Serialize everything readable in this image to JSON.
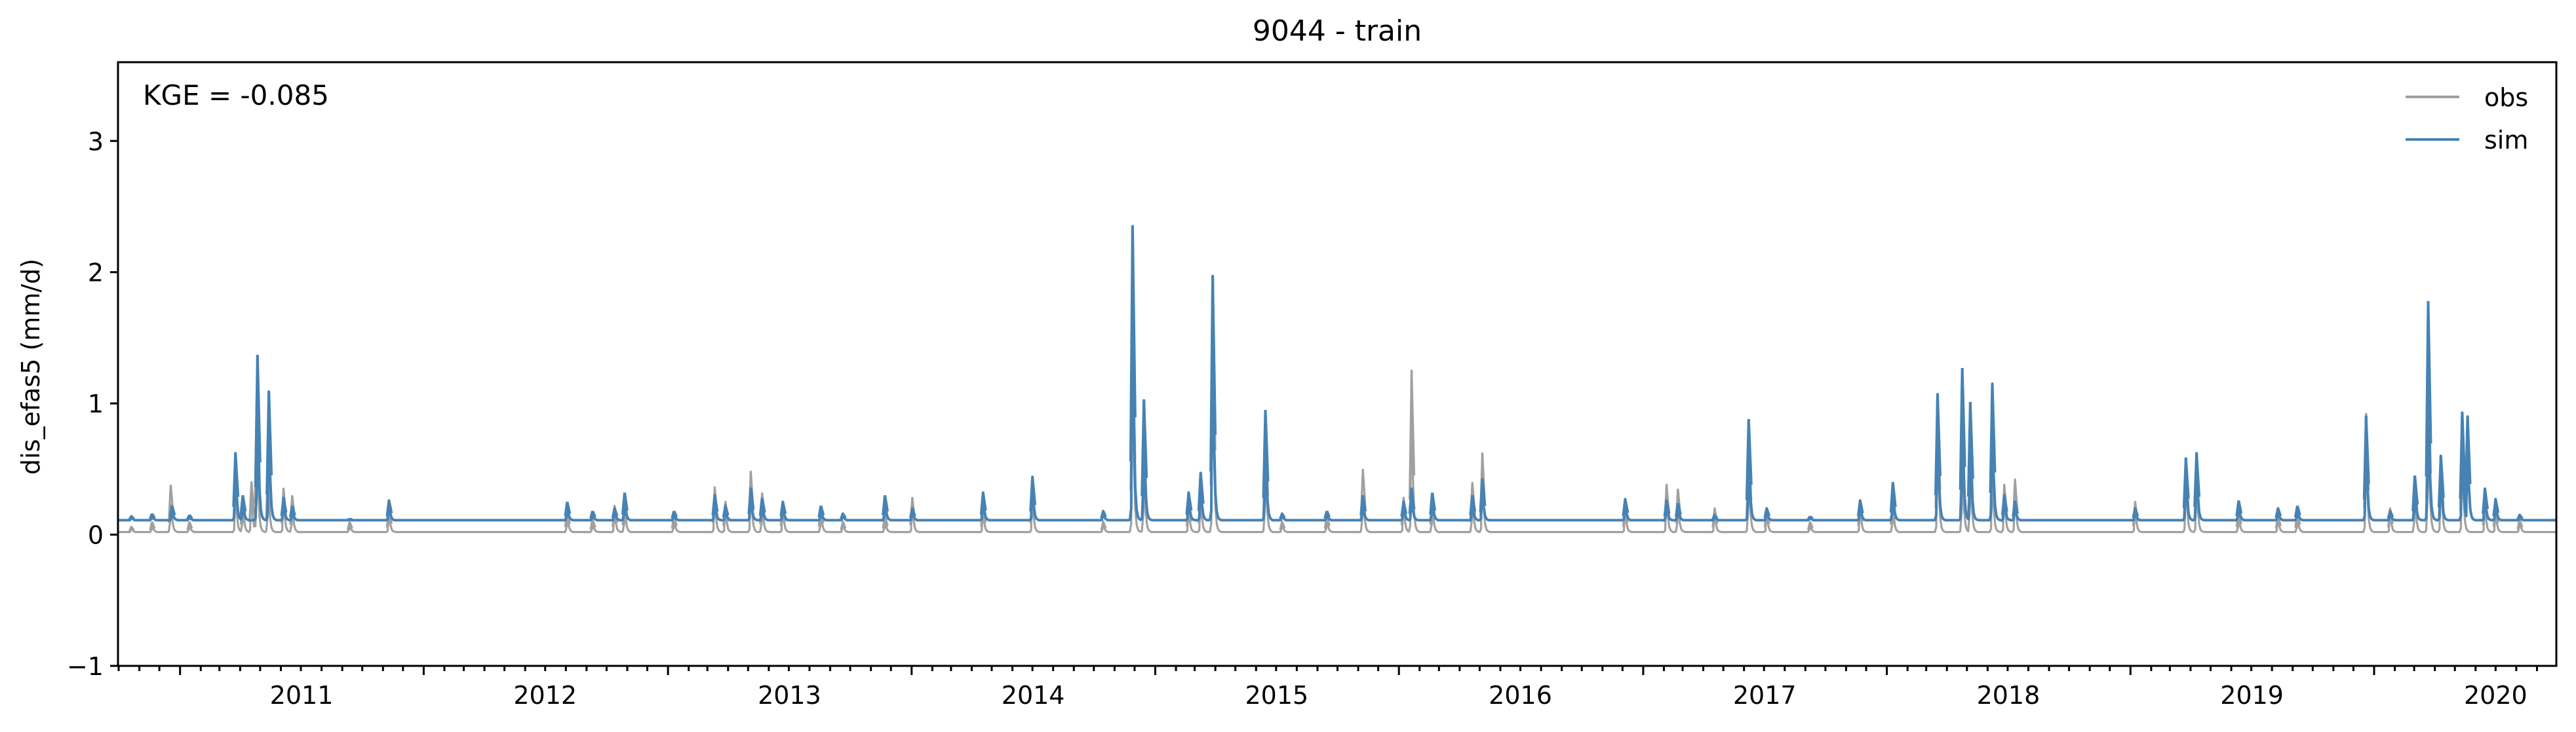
{
  "chart_data": {
    "type": "line",
    "title": "9044 - train",
    "xlabel": "",
    "ylabel": "dis_efas5 (mm/d)",
    "annotation": "KGE = -0.085",
    "xlim": [
      "2010-09-30",
      "2020-09-30"
    ],
    "ylim": [
      -1,
      3.6
    ],
    "yticks": [
      -1,
      0,
      1,
      2,
      3
    ],
    "ytick_labels": [
      "−1",
      "0",
      "1",
      "2",
      "3"
    ],
    "xticks": [
      "2011-01-01",
      "2012-01-01",
      "2013-01-01",
      "2014-01-01",
      "2015-01-01",
      "2016-01-01",
      "2017-01-01",
      "2018-01-01",
      "2019-01-01",
      "2020-01-01"
    ],
    "xtick_labels": [
      "2011",
      "2012",
      "2013",
      "2014",
      "2015",
      "2016",
      "2017",
      "2018",
      "2019",
      "2020"
    ],
    "grid": false,
    "legend": {
      "position": "top-right"
    },
    "series": [
      {
        "name": "obs",
        "color": "#a0a0a0",
        "baseline": 0.02,
        "peaks": [
          [
            "2010-10-20",
            0.06
          ],
          [
            "2010-11-20",
            0.1
          ],
          [
            "2010-12-18",
            0.38
          ],
          [
            "2011-01-15",
            0.1
          ],
          [
            "2011-03-25",
            0.45
          ],
          [
            "2011-04-05",
            0.3
          ],
          [
            "2011-04-18",
            0.4
          ],
          [
            "2011-04-26",
            1.1
          ],
          [
            "2011-05-13",
            0.55
          ],
          [
            "2011-06-05",
            0.35
          ],
          [
            "2011-06-18",
            0.3
          ],
          [
            "2011-09-12",
            0.1
          ],
          [
            "2011-11-10",
            0.2
          ],
          [
            "2012-08-03",
            0.2
          ],
          [
            "2012-09-10",
            0.12
          ],
          [
            "2012-10-13",
            0.22
          ],
          [
            "2012-10-28",
            0.28
          ],
          [
            "2013-01-10",
            0.15
          ],
          [
            "2013-03-12",
            0.36
          ],
          [
            "2013-03-28",
            0.25
          ],
          [
            "2013-05-05",
            0.48
          ],
          [
            "2013-05-22",
            0.32
          ],
          [
            "2013-06-22",
            0.25
          ],
          [
            "2013-08-18",
            0.22
          ],
          [
            "2013-09-20",
            0.1
          ],
          [
            "2013-11-22",
            0.15
          ],
          [
            "2014-01-02",
            0.28
          ],
          [
            "2014-04-18",
            0.22
          ],
          [
            "2014-07-01",
            0.35
          ],
          [
            "2014-10-15",
            0.1
          ],
          [
            "2014-11-28",
            1.6
          ],
          [
            "2014-12-15",
            0.7
          ],
          [
            "2015-02-20",
            0.25
          ],
          [
            "2015-03-10",
            0.35
          ],
          [
            "2015-03-28",
            1.8
          ],
          [
            "2015-06-15",
            0.8
          ],
          [
            "2015-07-10",
            0.1
          ],
          [
            "2015-09-15",
            0.15
          ],
          [
            "2015-11-08",
            0.5
          ],
          [
            "2016-01-08",
            0.28
          ],
          [
            "2016-01-20",
            1.25
          ],
          [
            "2016-02-20",
            0.3
          ],
          [
            "2016-04-20",
            0.4
          ],
          [
            "2016-05-05",
            0.62
          ],
          [
            "2016-12-05",
            0.22
          ],
          [
            "2017-02-05",
            0.38
          ],
          [
            "2017-02-22",
            0.35
          ],
          [
            "2017-04-18",
            0.2
          ],
          [
            "2017-06-08",
            0.7
          ],
          [
            "2017-07-05",
            0.2
          ],
          [
            "2017-09-08",
            0.1
          ],
          [
            "2017-11-22",
            0.25
          ],
          [
            "2018-01-10",
            0.3
          ],
          [
            "2018-03-18",
            0.95
          ],
          [
            "2018-04-24",
            0.8
          ],
          [
            "2018-05-06",
            0.75
          ],
          [
            "2018-06-08",
            0.6
          ],
          [
            "2018-06-26",
            0.38
          ],
          [
            "2018-07-12",
            0.42
          ],
          [
            "2019-01-08",
            0.25
          ],
          [
            "2019-03-25",
            0.55
          ],
          [
            "2019-04-10",
            0.52
          ],
          [
            "2019-06-12",
            0.2
          ],
          [
            "2019-08-10",
            0.15
          ],
          [
            "2019-09-08",
            0.18
          ],
          [
            "2019-12-20",
            0.92
          ],
          [
            "2020-01-25",
            0.2
          ],
          [
            "2020-03-02",
            0.42
          ],
          [
            "2020-03-22",
            1.3
          ],
          [
            "2020-04-10",
            0.6
          ],
          [
            "2020-05-12",
            0.82
          ],
          [
            "2020-06-15",
            0.28
          ],
          [
            "2020-07-01",
            0.22
          ],
          [
            "2020-08-06",
            0.12
          ]
        ]
      },
      {
        "name": "sim",
        "color": "#4682b4",
        "baseline": 0.11,
        "peaks": [
          [
            "2010-10-20",
            0.14
          ],
          [
            "2010-11-20",
            0.16
          ],
          [
            "2010-12-20",
            0.22
          ],
          [
            "2011-01-15",
            0.15
          ],
          [
            "2011-03-25",
            0.62
          ],
          [
            "2011-04-05",
            0.3
          ],
          [
            "2011-04-27",
            1.37
          ],
          [
            "2011-05-14",
            1.09
          ],
          [
            "2011-06-05",
            0.28
          ],
          [
            "2011-06-18",
            0.22
          ],
          [
            "2011-09-12",
            0.12
          ],
          [
            "2011-11-10",
            0.26
          ],
          [
            "2012-08-03",
            0.25
          ],
          [
            "2012-09-10",
            0.18
          ],
          [
            "2012-10-13",
            0.2
          ],
          [
            "2012-10-28",
            0.32
          ],
          [
            "2013-01-10",
            0.18
          ],
          [
            "2013-03-12",
            0.3
          ],
          [
            "2013-03-28",
            0.22
          ],
          [
            "2013-05-05",
            0.35
          ],
          [
            "2013-05-22",
            0.28
          ],
          [
            "2013-06-22",
            0.25
          ],
          [
            "2013-08-18",
            0.22
          ],
          [
            "2013-09-20",
            0.16
          ],
          [
            "2013-11-22",
            0.3
          ],
          [
            "2014-01-02",
            0.2
          ],
          [
            "2014-04-18",
            0.32
          ],
          [
            "2014-07-01",
            0.44
          ],
          [
            "2014-10-15",
            0.18
          ],
          [
            "2014-11-28",
            2.35
          ],
          [
            "2014-12-15",
            1.03
          ],
          [
            "2015-02-20",
            0.32
          ],
          [
            "2015-03-10",
            0.47
          ],
          [
            "2015-03-28",
            1.97
          ],
          [
            "2015-06-15",
            0.95
          ],
          [
            "2015-07-10",
            0.16
          ],
          [
            "2015-09-15",
            0.18
          ],
          [
            "2015-11-08",
            0.3
          ],
          [
            "2016-01-08",
            0.25
          ],
          [
            "2016-01-20",
            0.35
          ],
          [
            "2016-02-20",
            0.32
          ],
          [
            "2016-04-20",
            0.3
          ],
          [
            "2016-05-05",
            0.42
          ],
          [
            "2016-12-05",
            0.27
          ],
          [
            "2017-02-05",
            0.26
          ],
          [
            "2017-02-22",
            0.24
          ],
          [
            "2017-04-18",
            0.15
          ],
          [
            "2017-06-08",
            0.88
          ],
          [
            "2017-07-05",
            0.2
          ],
          [
            "2017-09-08",
            0.14
          ],
          [
            "2017-11-22",
            0.26
          ],
          [
            "2018-01-10",
            0.4
          ],
          [
            "2018-03-18",
            1.07
          ],
          [
            "2018-04-24",
            1.27
          ],
          [
            "2018-05-06",
            1.01
          ],
          [
            "2018-06-08",
            1.15
          ],
          [
            "2018-06-26",
            0.3
          ],
          [
            "2018-07-12",
            0.25
          ],
          [
            "2019-01-08",
            0.2
          ],
          [
            "2019-03-25",
            0.58
          ],
          [
            "2019-04-10",
            0.62
          ],
          [
            "2019-06-12",
            0.26
          ],
          [
            "2019-08-10",
            0.2
          ],
          [
            "2019-09-08",
            0.22
          ],
          [
            "2019-12-20",
            0.9
          ],
          [
            "2020-01-25",
            0.18
          ],
          [
            "2020-03-02",
            0.45
          ],
          [
            "2020-03-22",
            1.78
          ],
          [
            "2020-04-10",
            0.6
          ],
          [
            "2020-05-12",
            0.93
          ],
          [
            "2020-05-20",
            0.9
          ],
          [
            "2020-06-15",
            0.35
          ],
          [
            "2020-07-01",
            0.27
          ],
          [
            "2020-08-06",
            0.15
          ]
        ]
      }
    ]
  }
}
